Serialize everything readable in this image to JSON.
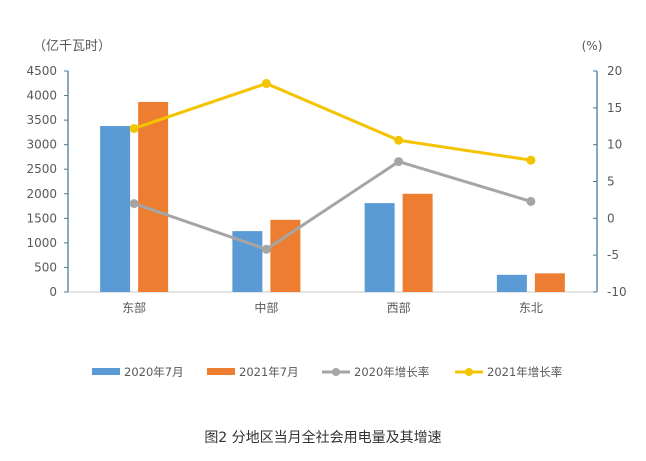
{
  "chart_data": {
    "type": "bar",
    "title": "图2 分地区当月全社会用电量及其增速",
    "ylabel_left": "（亿千瓦时）",
    "ylabel_right": "(%)",
    "categories": [
      "东部",
      "中部",
      "西部",
      "东北"
    ],
    "ylim_left": [
      0,
      4500
    ],
    "ylim_right": [
      -10,
      20
    ],
    "yticks_left": [
      "0",
      "500",
      "1000",
      "1500",
      "2000",
      "2500",
      "3000",
      "3500",
      "4000",
      "4500"
    ],
    "yticks_right": [
      "-10",
      "-5",
      "0",
      "5",
      "10",
      "15",
      "20"
    ],
    "grid": false,
    "legend_position": "bottom",
    "series": [
      {
        "name": "2020年7月",
        "kind": "bar",
        "axis": "left",
        "color": "#5B9BD5",
        "values": [
          3380,
          1240,
          1810,
          350
        ]
      },
      {
        "name": "2021年7月",
        "kind": "bar",
        "axis": "left",
        "color": "#ED7D31",
        "values": [
          3870,
          1470,
          2000,
          380
        ]
      },
      {
        "name": "2020年增长率",
        "kind": "line",
        "axis": "right",
        "color": "#A5A5A5",
        "values": [
          2.0,
          -4.2,
          7.7,
          2.3
        ]
      },
      {
        "name": "2021年增长率",
        "kind": "line",
        "axis": "right",
        "color": "#F5C400",
        "values": [
          12.2,
          18.3,
          10.6,
          7.9
        ]
      }
    ]
  }
}
